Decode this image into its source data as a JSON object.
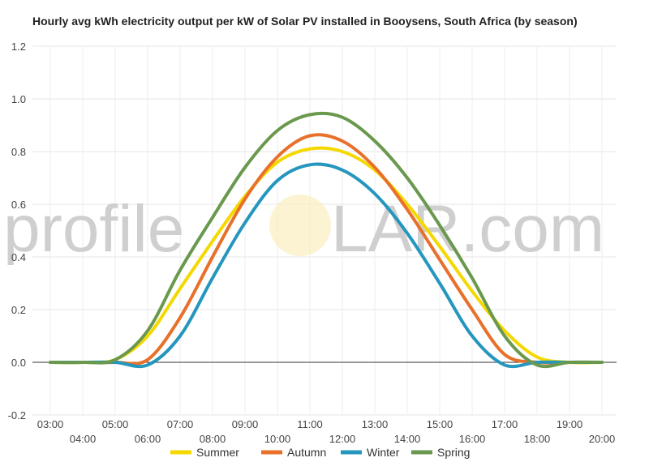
{
  "chart_data": {
    "type": "line",
    "title": "Hourly avg kWh electricity output per kW of Solar PV installed in Booysens, South Africa (by season)",
    "xlabel": "",
    "ylabel": "",
    "x": [
      "03:00",
      "04:00",
      "05:00",
      "06:00",
      "07:00",
      "08:00",
      "09:00",
      "10:00",
      "11:00",
      "12:00",
      "13:00",
      "14:00",
      "15:00",
      "16:00",
      "17:00",
      "18:00",
      "19:00",
      "20:00"
    ],
    "ylim": [
      -0.2,
      1.2
    ],
    "yticks": [
      "-0.2",
      "0.0",
      "0.2",
      "0.4",
      "0.6",
      "0.8",
      "1.0",
      "1.2"
    ],
    "grid": true,
    "legend": "bottom",
    "series": [
      {
        "name": "Summer",
        "color": "#f5d800",
        "values": [
          0.0,
          0.0,
          0.01,
          0.1,
          0.28,
          0.46,
          0.63,
          0.76,
          0.81,
          0.8,
          0.73,
          0.6,
          0.44,
          0.27,
          0.12,
          0.02,
          0.0,
          0.0
        ]
      },
      {
        "name": "Autumn",
        "color": "#e8702a",
        "values": [
          0.0,
          0.0,
          0.0,
          0.01,
          0.17,
          0.4,
          0.62,
          0.78,
          0.86,
          0.84,
          0.74,
          0.58,
          0.39,
          0.2,
          0.03,
          0.0,
          0.0,
          0.0
        ]
      },
      {
        "name": "Winter",
        "color": "#2596be",
        "values": [
          0.0,
          0.0,
          0.0,
          -0.01,
          0.1,
          0.32,
          0.53,
          0.69,
          0.75,
          0.73,
          0.64,
          0.49,
          0.3,
          0.1,
          -0.01,
          0.0,
          0.0,
          0.0
        ]
      },
      {
        "name": "Spring",
        "color": "#6a994e",
        "values": [
          0.0,
          0.0,
          0.01,
          0.12,
          0.35,
          0.55,
          0.74,
          0.88,
          0.94,
          0.93,
          0.84,
          0.7,
          0.52,
          0.32,
          0.1,
          -0.01,
          0.0,
          0.0
        ]
      }
    ]
  },
  "watermark": {
    "prefix": "profile",
    "suffix": "LAR.com"
  }
}
